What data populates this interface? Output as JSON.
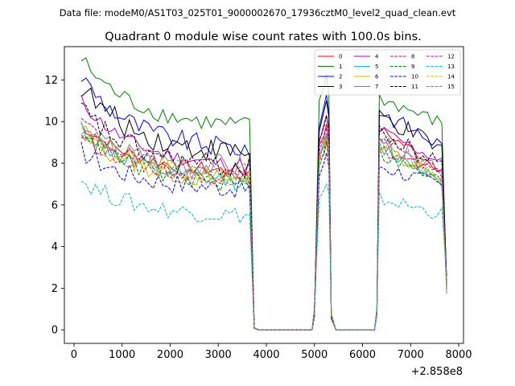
{
  "chart_data": {
    "type": "line",
    "suptitle": "Data file: modeM0/AS1T03_025T01_9000002670_17936cztM0_level2_quad_clean.evt",
    "title": "Quadrant 0 module wise count rates with 100.0s bins.",
    "xlabel": "",
    "ylabel": "",
    "offset_text": "+2.858e8",
    "xlim": [
      -200,
      8100
    ],
    "ylim": [
      -0.65,
      13.6
    ],
    "xticks": [
      0,
      1000,
      2000,
      3000,
      4000,
      5000,
      6000,
      7000,
      8000
    ],
    "xtick_labels": [
      "0",
      "1000",
      "2000",
      "3000",
      "4000",
      "5000",
      "6000",
      "7000",
      "8000"
    ],
    "yticks": [
      0,
      2,
      4,
      6,
      8,
      10,
      12
    ],
    "ytick_labels": [
      "0",
      "2",
      "4",
      "6",
      "8",
      "10",
      "12"
    ],
    "legend_position": "upper right",
    "legend_columns": 4,
    "x_segments": [
      {
        "start": 150,
        "end": 3650
      },
      {
        "start": 3850,
        "end": 4950
      },
      {
        "start": 5050,
        "end": 5350
      },
      {
        "start": 5450,
        "end": 6250
      },
      {
        "start": 6350,
        "end": 7750
      }
    ],
    "series": [
      {
        "name": "0",
        "color": "#ff0000",
        "dash": "solid",
        "start": 9.9,
        "end": 7.6,
        "peak": 9.9,
        "mid": 9.0
      },
      {
        "name": "1",
        "color": "#008000",
        "dash": "solid",
        "start": 13.0,
        "end": 9.8,
        "peak": 12.3,
        "mid": 10.4
      },
      {
        "name": "2",
        "color": "#0000ff",
        "dash": "solid",
        "start": 12.2,
        "end": 8.7,
        "peak": 11.3,
        "mid": 9.8
      },
      {
        "name": "3",
        "color": "#000000",
        "dash": "solid",
        "start": 11.7,
        "end": 8.5,
        "peak": 11.0,
        "mid": 9.6
      },
      {
        "name": "4",
        "color": "#bf00bf",
        "dash": "solid",
        "start": 11.0,
        "end": 7.9,
        "peak": 10.3,
        "mid": 9.0
      },
      {
        "name": "5",
        "color": "#00bfbf",
        "dash": "solid",
        "start": 9.8,
        "end": 7.1,
        "peak": 9.4,
        "mid": 8.2
      },
      {
        "name": "6",
        "color": "#bfbf00",
        "dash": "solid",
        "start": 9.6,
        "end": 7.2,
        "peak": 9.3,
        "mid": 8.3
      },
      {
        "name": "7",
        "color": "#808080",
        "dash": "solid",
        "start": 9.5,
        "end": 7.8,
        "peak": 9.4,
        "mid": 8.3
      },
      {
        "name": "8",
        "color": "#ff0000",
        "dash": "dashed",
        "start": 9.4,
        "end": 7.3,
        "peak": 9.0,
        "mid": 8.1
      },
      {
        "name": "9",
        "color": "#008000",
        "dash": "dashed",
        "start": 9.7,
        "end": 7.0,
        "peak": 9.1,
        "mid": 7.9
      },
      {
        "name": "10",
        "color": "#0000ff",
        "dash": "dashed",
        "start": 8.6,
        "end": 6.8,
        "peak": 8.5,
        "mid": 7.4
      },
      {
        "name": "11",
        "color": "#000000",
        "dash": "dashed",
        "start": 10.6,
        "end": 7.8,
        "peak": 10.3,
        "mid": 8.8
      },
      {
        "name": "12",
        "color": "#bf00bf",
        "dash": "dashed",
        "start": 10.1,
        "end": 7.4,
        "peak": 9.7,
        "mid": 8.5
      },
      {
        "name": "13",
        "color": "#00bfbf",
        "dash": "dashed",
        "start": 7.2,
        "end": 5.5,
        "peak": 7.0,
        "mid": 5.9
      },
      {
        "name": "14",
        "color": "#bfbf00",
        "dash": "dashed",
        "start": 9.6,
        "end": 7.3,
        "peak": 9.2,
        "mid": 8.1
      },
      {
        "name": "15",
        "color": "#808080",
        "dash": "dashed",
        "start": 9.8,
        "end": 7.5,
        "peak": 9.4,
        "mid": 8.2
      }
    ]
  }
}
